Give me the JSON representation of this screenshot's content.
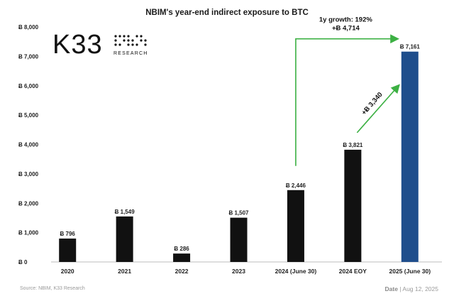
{
  "chart_data": {
    "type": "bar",
    "title": "NBIM's year-end indirect exposure to BTC",
    "categories": [
      "2020",
      "2021",
      "2022",
      "2023",
      "2024 (June 30)",
      "2024 EOY",
      "2025 (June 30)"
    ],
    "values": [
      796,
      1549,
      286,
      1507,
      2446,
      3821,
      7161
    ],
    "value_labels": [
      "Ƀ 796",
      "Ƀ 1,549",
      "Ƀ 286",
      "Ƀ 1,507",
      "Ƀ 2,446",
      "Ƀ 3,821",
      "Ƀ 7,161"
    ],
    "ylim": [
      0,
      8000
    ],
    "y_ticks": [
      0,
      1000,
      2000,
      3000,
      4000,
      5000,
      6000,
      7000,
      8000
    ],
    "y_tick_labels": [
      "Ƀ 0",
      "Ƀ 1,000",
      "Ƀ 2,000",
      "Ƀ 3,000",
      "Ƀ 4,000",
      "Ƀ 5,000",
      "Ƀ 6,000",
      "Ƀ 7,000",
      "Ƀ 8,000"
    ],
    "xlabel": "",
    "ylabel": "",
    "grid": false,
    "colors": {
      "default": "#111111",
      "highlight": "#1f4e8c",
      "arrow": "#3cb043"
    },
    "highlight_index": 6,
    "annotations": [
      {
        "lines": [
          "1y growth: 192%",
          "+Ƀ 4,714"
        ],
        "from": "2024 (June 30)",
        "to": "2025 (June 30)"
      },
      {
        "text": "+Ƀ 3,340",
        "from": "2024 EOY",
        "to": "2025 (June 30)"
      }
    ]
  },
  "logo": {
    "name": "K33",
    "sub": "RESEARCH"
  },
  "footer": {
    "source": "Source: NBIM, K33 Research",
    "date_label": "Date",
    "date_value": "| Aug 12, 2025"
  }
}
